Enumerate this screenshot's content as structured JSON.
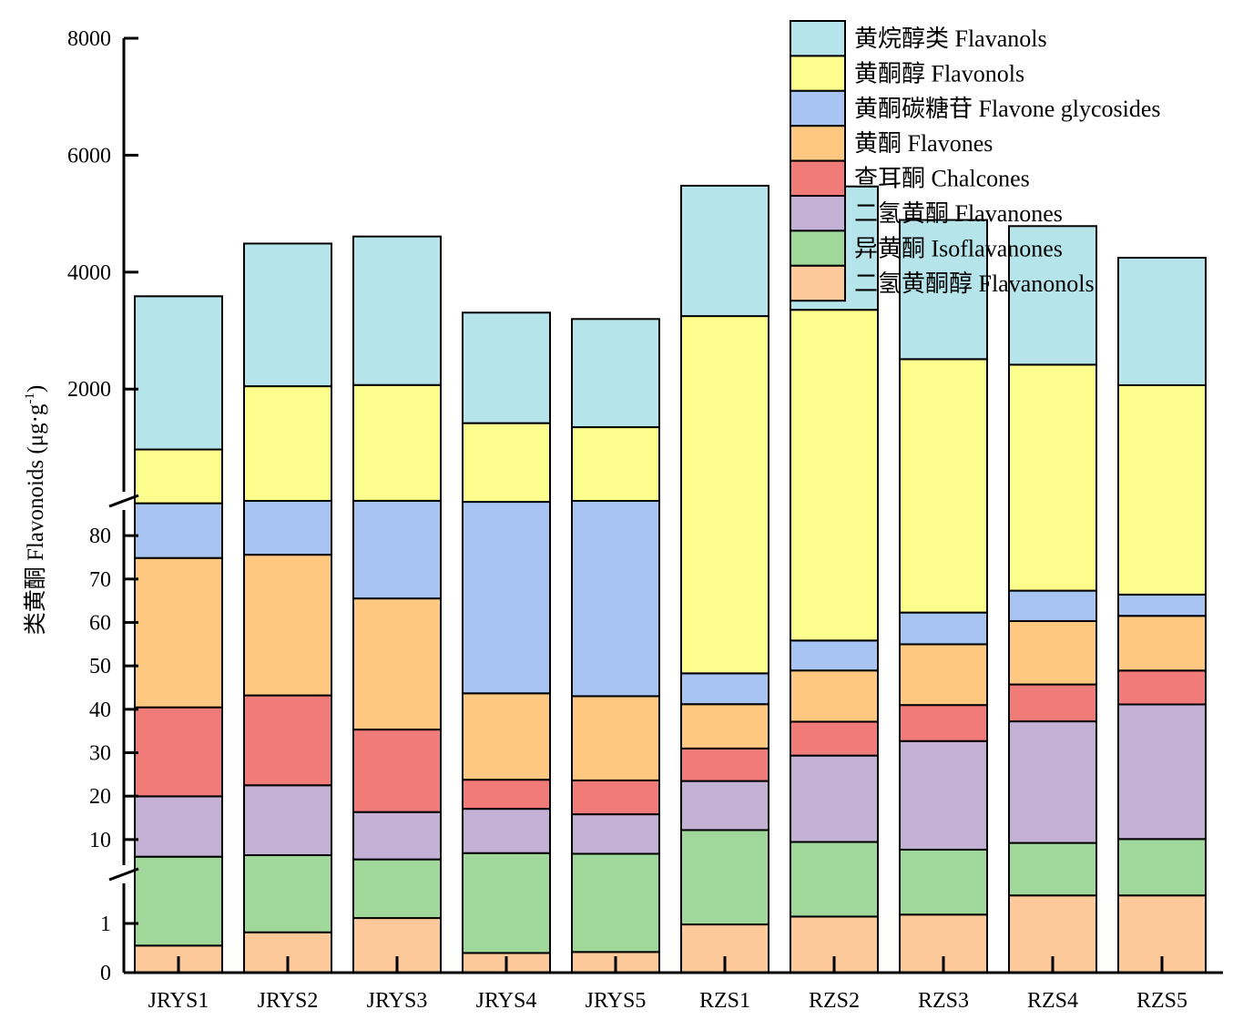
{
  "chart_data": {
    "type": "bar",
    "stacked": true,
    "broken_y_axis": true,
    "ylabel_main": "类黄酮 Flavonoids (μg·g",
    "ylabel_sup": "-1",
    "ylabel_end": ")",
    "categories": [
      "JRYS1",
      "JRYS2",
      "JRYS3",
      "JRYS4",
      "JRYS5",
      "RZS1",
      "RZS2",
      "RZS3",
      "RZS4",
      "RZS5"
    ],
    "y_segments": [
      {
        "range": [
          0,
          2
        ],
        "ticks": [
          0,
          1
        ],
        "tick_labels": [
          "0",
          "1"
        ]
      },
      {
        "range": [
          2,
          88
        ],
        "ticks": [
          10,
          20,
          30,
          40,
          50,
          60,
          70,
          80
        ],
        "tick_labels": [
          "10",
          "20",
          "30",
          "40",
          "50",
          "60",
          "70",
          "80"
        ]
      },
      {
        "range": [
          88,
          8000
        ],
        "ticks": [
          2000,
          4000,
          6000,
          8000
        ],
        "tick_labels": [
          "2000",
          "4000",
          "6000",
          "8000"
        ]
      }
    ],
    "legend_position": "top-right",
    "legend": [
      {
        "label": "黄烷醇类 Flavanols",
        "color": "#b5e4ea"
      },
      {
        "label": "黄酮醇 Flavonols",
        "color": "#fdfd8e"
      },
      {
        "label": "黄酮碳糖苷 Flavone glycosides",
        "color": "#a8c4f2"
      },
      {
        "label": "黄酮 Flavones",
        "color": "#fec880"
      },
      {
        "label": "查耳酮 Chalcones",
        "color": "#f07b79"
      },
      {
        "label": "二氢黄酮 Flavanones",
        "color": "#c3b1d6"
      },
      {
        "label": "异黄酮 Isoflavanones",
        "color": "#a0d89c"
      },
      {
        "label": "二氢黄酮醇 Flavanonols",
        "color": "#fdc89a"
      }
    ],
    "series": [
      {
        "name": "二氢黄酮醇 Flavanonols",
        "color": "#fdc89a",
        "values": [
          0.55,
          0.82,
          1.11,
          0.4,
          0.42,
          0.98,
          1.14,
          1.18,
          1.57,
          1.57
        ]
      },
      {
        "name": "异黄酮 Isoflavanones",
        "color": "#a0d89c",
        "values": [
          5.5,
          5.58,
          4.32,
          6.48,
          6.3,
          11.2,
          8.3,
          6.5,
          7.65,
          8.55
        ]
      },
      {
        "name": "二氢黄酮 Flavanones",
        "color": "#c3b1d6",
        "values": [
          13.9,
          16.1,
          10.9,
          10.2,
          9.1,
          11.3,
          19.9,
          25.0,
          28.0,
          31.0
        ]
      },
      {
        "name": "查耳酮 Chalcones",
        "color": "#f07b79",
        "values": [
          20.5,
          20.7,
          19.0,
          6.7,
          7.8,
          7.5,
          7.8,
          8.3,
          8.5,
          7.8
        ]
      },
      {
        "name": "黄酮 Flavones",
        "color": "#fec880",
        "values": [
          34.4,
          32.4,
          30.2,
          19.9,
          19.4,
          10.2,
          11.8,
          14.0,
          14.6,
          12.6
        ]
      },
      {
        "name": "黄酮碳糖苷 Flavone glycosides",
        "color": "#a8c4f2",
        "values": [
          12.6,
          13.2,
          24.2,
          44.1,
          45.5,
          7.1,
          6.9,
          7.3,
          7.0,
          4.9
        ]
      },
      {
        "name": "黄酮醇 Flavonols",
        "color": "#fdfd8e",
        "values": [
          880,
          1960,
          1980,
          1330,
          1260,
          3200,
          3300,
          2450,
          2350,
          2000
        ]
      },
      {
        "name": "黄烷醇类 Flavanols",
        "color": "#b5e4ea",
        "values": [
          2620,
          2440,
          2540,
          1890,
          1850,
          2230,
          2110,
          2380,
          2370,
          2180
        ]
      }
    ]
  }
}
